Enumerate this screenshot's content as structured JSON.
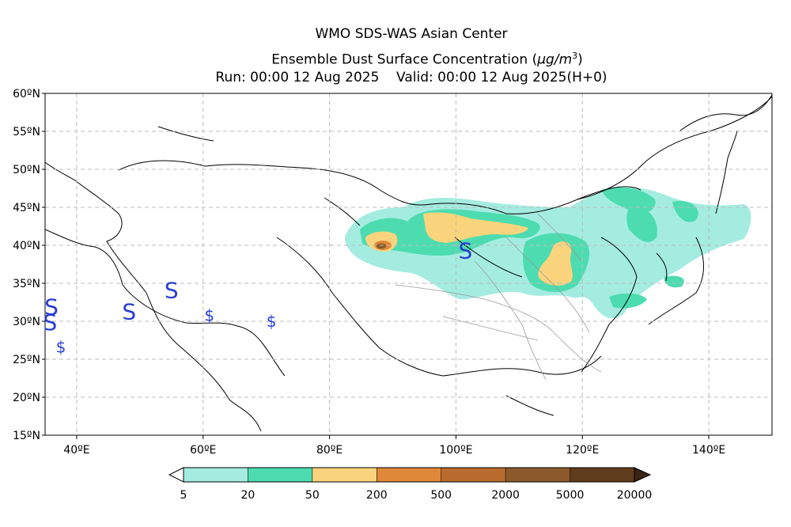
{
  "title": {
    "line1": "WMO SDS-WAS Asian Center",
    "line2_prefix": "Ensemble Dust Surface Concentration (",
    "line2_unit": "μg/m",
    "line2_sup": "3",
    "line2_suffix": ")",
    "line3": "Run: 00:00 12 Aug 2025    Valid: 00:00 12 Aug 2025(H+0)"
  },
  "map": {
    "lon_range": [
      35,
      150
    ],
    "lat_range": [
      15,
      60
    ],
    "lon_ticks": [
      "40ºE",
      "60ºE",
      "80ºE",
      "100ºE",
      "120ºE",
      "140ºE"
    ],
    "lat_ticks": [
      "60ºN",
      "55ºN",
      "50ºN",
      "45ºN",
      "40ºN",
      "35ºN",
      "30ºN",
      "25ºN",
      "20ºN",
      "15ºN"
    ],
    "grid": true,
    "weather_symbols": [
      {
        "glyph": "S",
        "lon": 36.0,
        "lat": 31.8
      },
      {
        "glyph": "S",
        "lon": 35.8,
        "lat": 29.8
      },
      {
        "glyph": "$",
        "lon": 37.5,
        "lat": 26.8
      },
      {
        "glyph": "S",
        "lon": 48.3,
        "lat": 31.2
      },
      {
        "glyph": "S",
        "lon": 55.0,
        "lat": 34.0
      },
      {
        "glyph": "$",
        "lon": 61.0,
        "lat": 31.0
      },
      {
        "glyph": "$",
        "lon": 70.8,
        "lat": 30.2
      },
      {
        "glyph": "S",
        "lon": 101.5,
        "lat": 39.2
      }
    ]
  },
  "legend": {
    "labels": [
      "5",
      "20",
      "50",
      "200",
      "500",
      "2000",
      "5000",
      "20000"
    ],
    "colors": [
      "#a4ece0",
      "#4cdcb0",
      "#fad47c",
      "#e0883a",
      "#b86b2c",
      "#8c5a2a",
      "#5e3c1c",
      "#3a2414"
    ]
  }
}
